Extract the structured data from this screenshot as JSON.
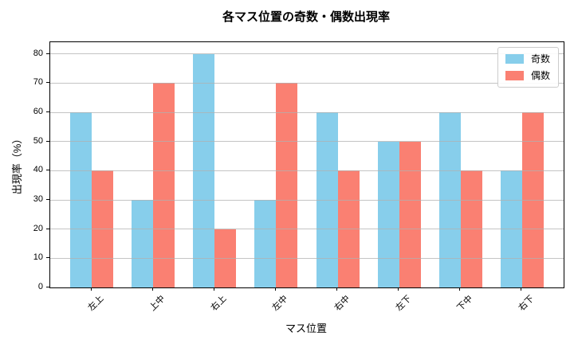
{
  "chart_data": {
    "type": "bar",
    "title": "各マス位置の奇数・偶数出現率",
    "xlabel": "マス位置",
    "ylabel": "出現率（%）",
    "categories": [
      "左上",
      "上中",
      "右上",
      "左中",
      "右中",
      "左下",
      "下中",
      "右下"
    ],
    "series": [
      {
        "name": "奇数",
        "color": "#87CEEB",
        "values": [
          60,
          30,
          80,
          30,
          60,
          50,
          60,
          40
        ]
      },
      {
        "name": "偶数",
        "color": "#FA8072",
        "values": [
          40,
          70,
          20,
          70,
          40,
          50,
          40,
          60
        ]
      }
    ],
    "ylim": [
      0,
      84
    ],
    "yticks": [
      0,
      10,
      20,
      30,
      40,
      50,
      60,
      70,
      80
    ],
    "grid": true,
    "grid_color": "#b0b0b0",
    "frame_color": "#000000",
    "legend_position": "upper right",
    "bar_width": 0.35,
    "xtick_rotation_deg": 45
  }
}
